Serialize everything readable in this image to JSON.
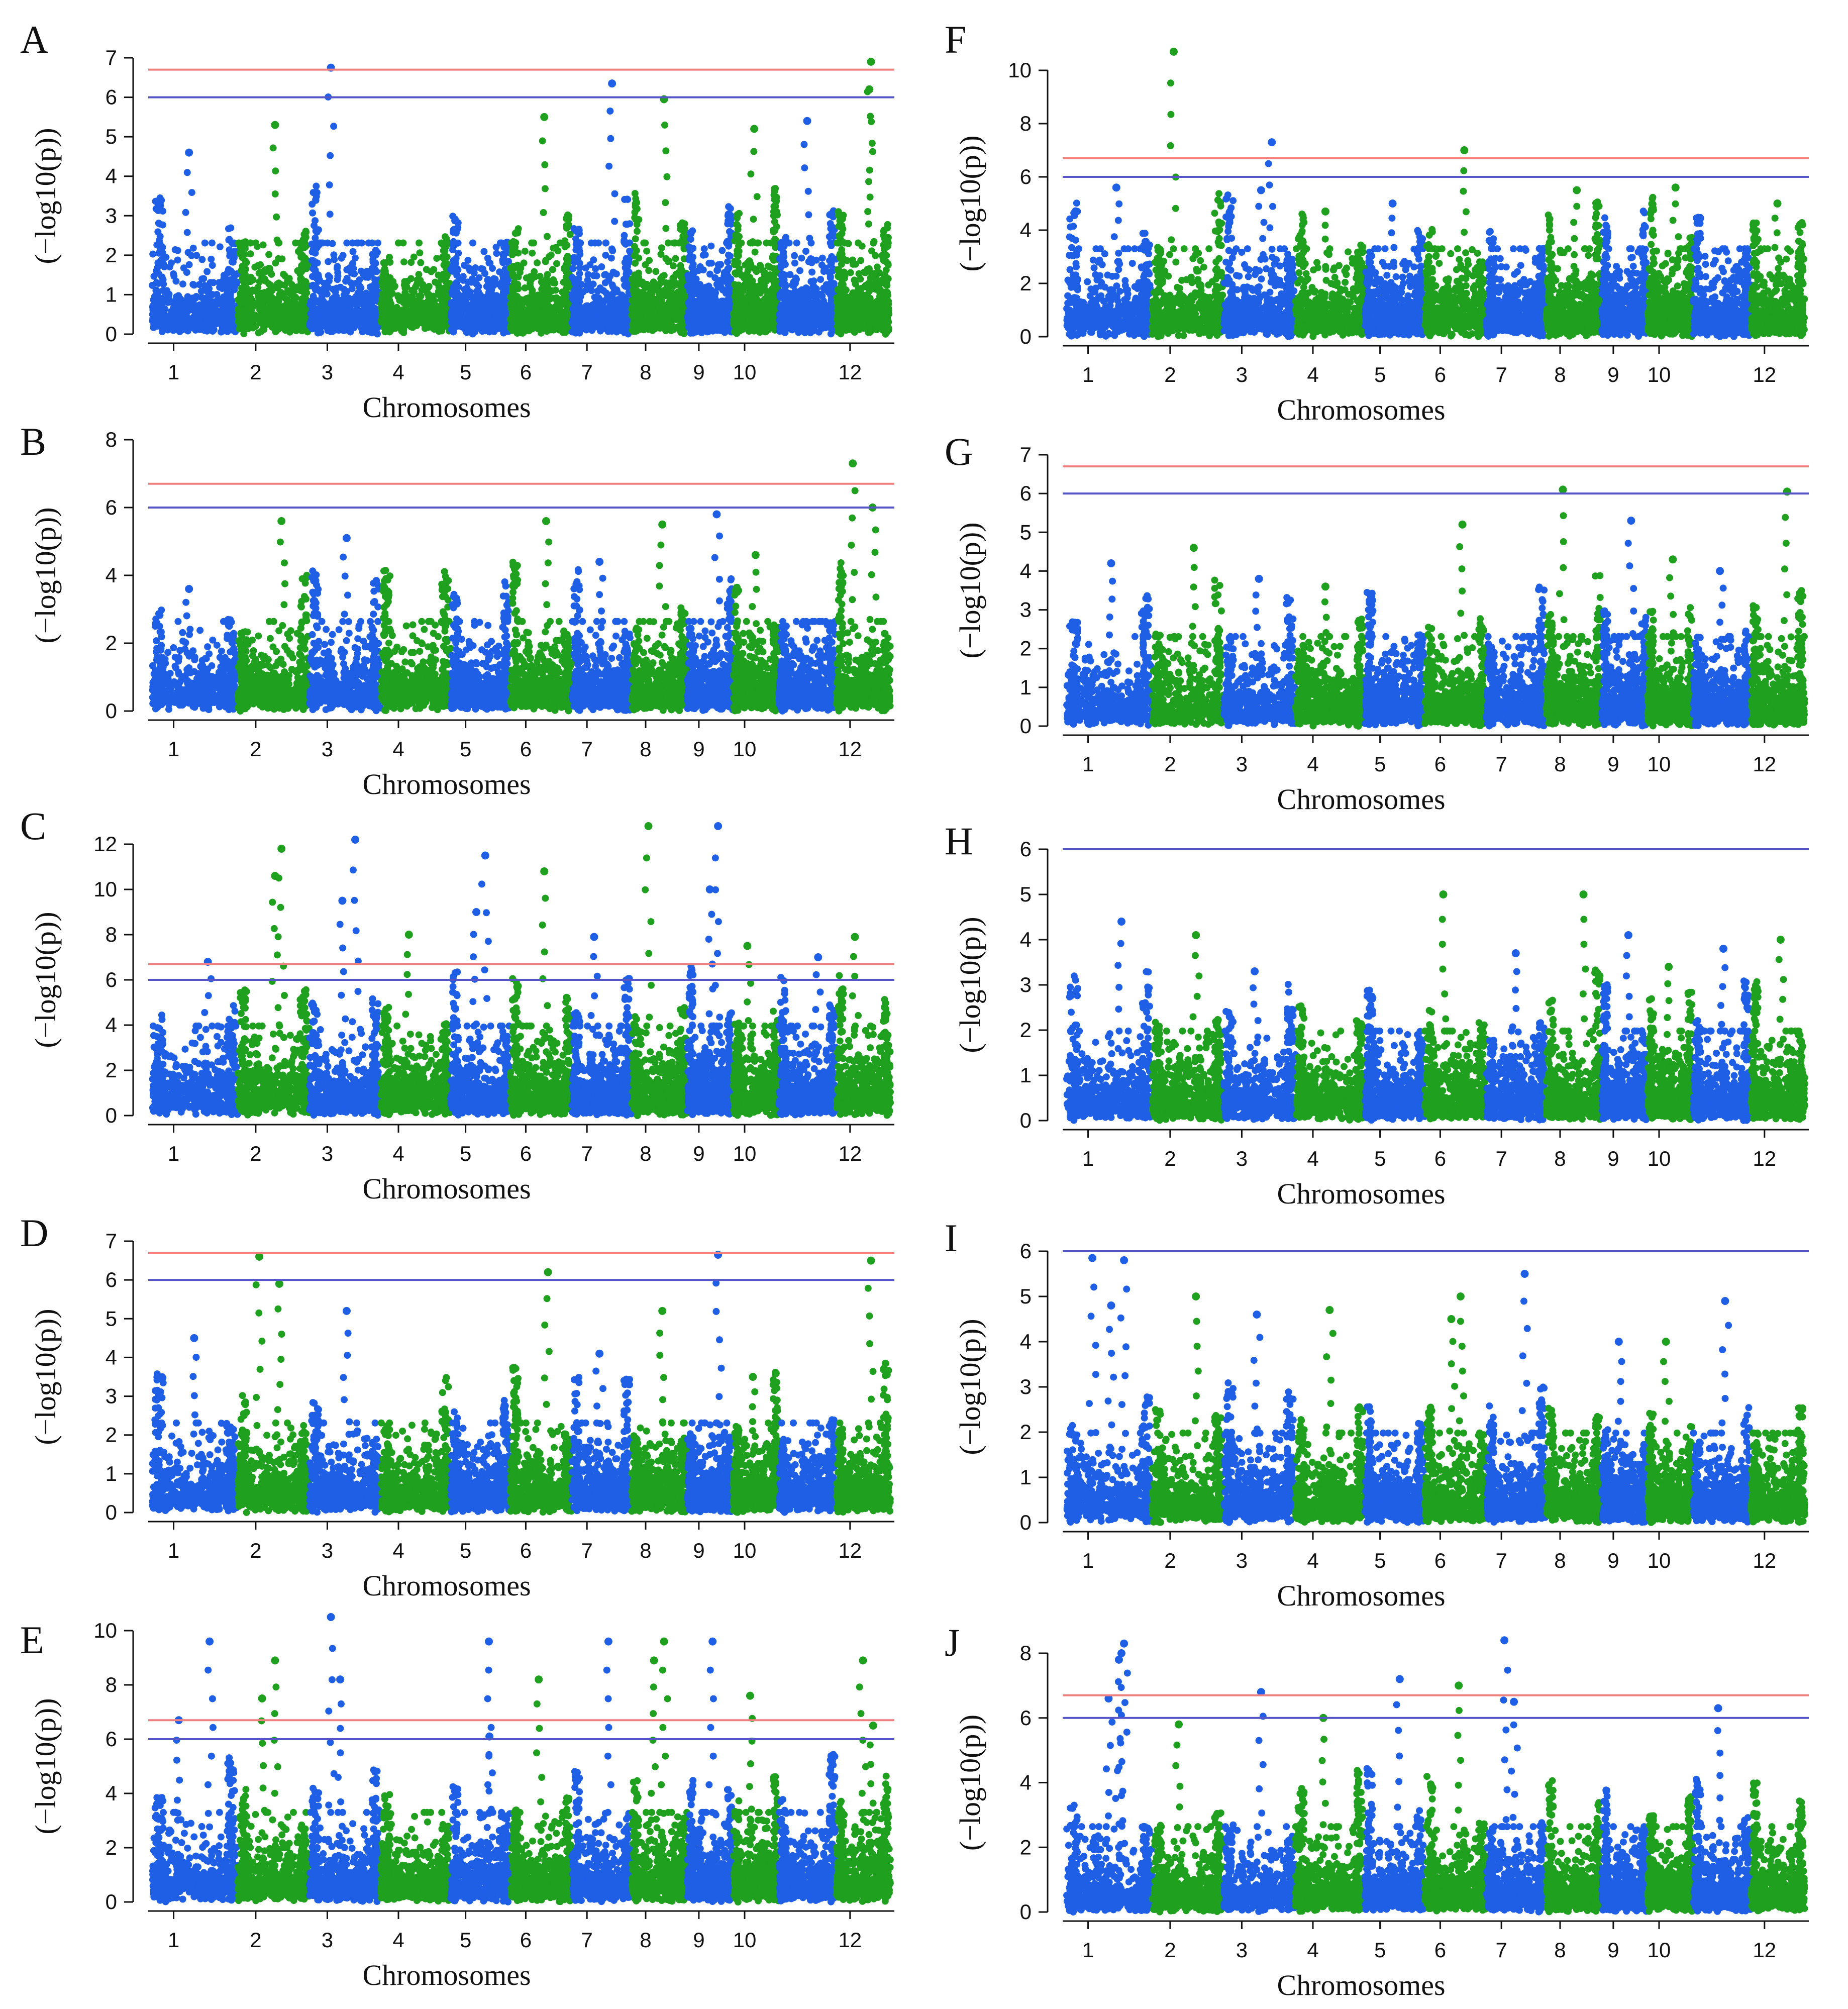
{
  "figure": {
    "colors": {
      "blue": "#1f5fe6",
      "green": "#1fa01f",
      "red_line": "#f08080",
      "blue_line": "#5555c8"
    }
  },
  "chart_data": [
    {
      "type": "scatter",
      "panel": "A",
      "xlabel": "Chromosomes",
      "ylabel": "(−log10(p))",
      "ylim": [
        0,
        7
      ],
      "yticks": [
        0,
        1,
        2,
        3,
        4,
        5,
        6,
        7
      ],
      "threshold_red": 6.7,
      "threshold_blue": 6.0,
      "chrom_labels": [
        "1",
        "2",
        "3",
        "4",
        "5",
        "6",
        "7",
        "8",
        "9",
        "10",
        "12"
      ],
      "peaks": [
        {
          "chrom": 3,
          "value": 6.75
        },
        {
          "chrom": 7,
          "value": 6.35
        },
        {
          "chrom": 12,
          "value": 6.9
        },
        {
          "chrom": 12,
          "value": 6.2
        },
        {
          "chrom": 8,
          "value": 5.95
        },
        {
          "chrom": 6,
          "value": 5.5
        },
        {
          "chrom": 2,
          "value": 5.3
        },
        {
          "chrom": 11,
          "value": 5.4
        },
        {
          "chrom": 10,
          "value": 5.2
        },
        {
          "chrom": 1,
          "value": 4.6
        }
      ]
    },
    {
      "type": "scatter",
      "panel": "B",
      "xlabel": "Chromosomes",
      "ylabel": "(−log10(p))",
      "ylim": [
        0,
        8
      ],
      "yticks": [
        0,
        2,
        4,
        6,
        8
      ],
      "threshold_red": 6.7,
      "threshold_blue": 6.0,
      "chrom_labels": [
        "1",
        "2",
        "3",
        "4",
        "5",
        "6",
        "7",
        "8",
        "9",
        "10",
        "12"
      ],
      "peaks": [
        {
          "chrom": 12,
          "value": 7.3
        },
        {
          "chrom": 12,
          "value": 6.0
        },
        {
          "chrom": 9,
          "value": 5.8
        },
        {
          "chrom": 2,
          "value": 5.6
        },
        {
          "chrom": 6,
          "value": 5.6
        },
        {
          "chrom": 8,
          "value": 5.5
        },
        {
          "chrom": 3,
          "value": 5.1
        },
        {
          "chrom": 10,
          "value": 4.6
        },
        {
          "chrom": 7,
          "value": 4.4
        },
        {
          "chrom": 1,
          "value": 3.6
        }
      ]
    },
    {
      "type": "scatter",
      "panel": "C",
      "xlabel": "Chromosomes",
      "ylabel": "(−log10(p))",
      "ylim": [
        0,
        12
      ],
      "yticks": [
        0,
        2,
        4,
        6,
        8,
        10,
        12
      ],
      "threshold_red": 6.7,
      "threshold_blue": 6.0,
      "chrom_labels": [
        "1",
        "2",
        "3",
        "4",
        "5",
        "6",
        "7",
        "8",
        "9",
        "10",
        "12"
      ],
      "peaks": [
        {
          "chrom": 8,
          "value": 12.8
        },
        {
          "chrom": 9,
          "value": 12.8
        },
        {
          "chrom": 3,
          "value": 12.2
        },
        {
          "chrom": 2,
          "value": 11.8
        },
        {
          "chrom": 5,
          "value": 11.5
        },
        {
          "chrom": 6,
          "value": 10.8
        },
        {
          "chrom": 2,
          "value": 10.6
        },
        {
          "chrom": 9,
          "value": 10.0
        },
        {
          "chrom": 3,
          "value": 9.5
        },
        {
          "chrom": 5,
          "value": 9.0
        },
        {
          "chrom": 4,
          "value": 8.0
        },
        {
          "chrom": 7,
          "value": 7.9
        },
        {
          "chrom": 12,
          "value": 7.9
        },
        {
          "chrom": 10,
          "value": 7.5
        },
        {
          "chrom": 11,
          "value": 7.0
        },
        {
          "chrom": 1,
          "value": 6.8
        }
      ]
    },
    {
      "type": "scatter",
      "panel": "D",
      "xlabel": "Chromosomes",
      "ylabel": "(−log10(p))",
      "ylim": [
        0,
        7
      ],
      "yticks": [
        0,
        1,
        2,
        3,
        4,
        5,
        6,
        7
      ],
      "threshold_red": 6.7,
      "threshold_blue": 6.0,
      "chrom_labels": [
        "1",
        "2",
        "3",
        "4",
        "5",
        "6",
        "7",
        "8",
        "9",
        "10",
        "12"
      ],
      "peaks": [
        {
          "chrom": 2,
          "value": 6.6
        },
        {
          "chrom": 9,
          "value": 6.65
        },
        {
          "chrom": 12,
          "value": 6.5
        },
        {
          "chrom": 6,
          "value": 6.2
        },
        {
          "chrom": 2,
          "value": 5.9
        },
        {
          "chrom": 8,
          "value": 5.2
        },
        {
          "chrom": 3,
          "value": 5.2
        },
        {
          "chrom": 1,
          "value": 4.5
        },
        {
          "chrom": 7,
          "value": 4.1
        },
        {
          "chrom": 10,
          "value": 3.5
        }
      ]
    },
    {
      "type": "scatter",
      "panel": "E",
      "xlabel": "Chromosomes",
      "ylabel": "(−log10(p))",
      "ylim": [
        0,
        10
      ],
      "yticks": [
        0,
        2,
        4,
        6,
        8,
        10
      ],
      "threshold_red": 6.7,
      "threshold_blue": 6.0,
      "chrom_labels": [
        "1",
        "2",
        "3",
        "4",
        "5",
        "6",
        "7",
        "8",
        "9",
        "10",
        "12"
      ],
      "peaks": [
        {
          "chrom": 3,
          "value": 10.5
        },
        {
          "chrom": 1,
          "value": 9.6
        },
        {
          "chrom": 5,
          "value": 9.6
        },
        {
          "chrom": 7,
          "value": 9.6
        },
        {
          "chrom": 8,
          "value": 9.6
        },
        {
          "chrom": 9,
          "value": 9.6
        },
        {
          "chrom": 2,
          "value": 8.9
        },
        {
          "chrom": 12,
          "value": 8.9
        },
        {
          "chrom": 6,
          "value": 8.2
        },
        {
          "chrom": 3,
          "value": 8.2
        },
        {
          "chrom": 8,
          "value": 8.9
        },
        {
          "chrom": 10,
          "value": 7.6
        },
        {
          "chrom": 2,
          "value": 7.5
        },
        {
          "chrom": 1,
          "value": 6.7
        },
        {
          "chrom": 12,
          "value": 6.5
        },
        {
          "chrom": 5,
          "value": 6.1
        }
      ]
    },
    {
      "type": "scatter",
      "panel": "F",
      "xlabel": "Chromosomes",
      "ylabel": "(−log10(p))",
      "ylim": [
        0,
        10
      ],
      "yticks": [
        0,
        2,
        4,
        6,
        8,
        10
      ],
      "threshold_red": 6.7,
      "threshold_blue": 6.0,
      "chrom_labels": [
        "1",
        "2",
        "3",
        "4",
        "5",
        "6",
        "7",
        "8",
        "9",
        "10",
        "12"
      ],
      "peaks": [
        {
          "chrom": 2,
          "value": 10.7
        },
        {
          "chrom": 3,
          "value": 7.3
        },
        {
          "chrom": 6,
          "value": 7.0
        },
        {
          "chrom": 10,
          "value": 5.6
        },
        {
          "chrom": 1,
          "value": 5.6
        },
        {
          "chrom": 8,
          "value": 5.5
        },
        {
          "chrom": 3,
          "value": 5.5
        },
        {
          "chrom": 12,
          "value": 5.0
        },
        {
          "chrom": 5,
          "value": 5.0
        },
        {
          "chrom": 4,
          "value": 4.7
        }
      ]
    },
    {
      "type": "scatter",
      "panel": "G",
      "xlabel": "Chromosomes",
      "ylabel": "(−log10(p))",
      "ylim": [
        0,
        7
      ],
      "yticks": [
        0,
        1,
        2,
        3,
        4,
        5,
        6,
        7
      ],
      "threshold_red": 6.7,
      "threshold_blue": 6.0,
      "chrom_labels": [
        "1",
        "2",
        "3",
        "4",
        "5",
        "6",
        "7",
        "8",
        "9",
        "10",
        "12"
      ],
      "peaks": [
        {
          "chrom": 8,
          "value": 6.1
        },
        {
          "chrom": 12,
          "value": 6.05
        },
        {
          "chrom": 9,
          "value": 5.3
        },
        {
          "chrom": 6,
          "value": 5.2
        },
        {
          "chrom": 2,
          "value": 4.6
        },
        {
          "chrom": 10,
          "value": 4.3
        },
        {
          "chrom": 1,
          "value": 4.2
        },
        {
          "chrom": 3,
          "value": 3.8
        },
        {
          "chrom": 11,
          "value": 4.0
        },
        {
          "chrom": 4,
          "value": 3.6
        }
      ]
    },
    {
      "type": "scatter",
      "panel": "H",
      "xlabel": "Chromosomes",
      "ylabel": "(−log10(p))",
      "ylim": [
        0,
        6
      ],
      "yticks": [
        0,
        1,
        2,
        3,
        4,
        5,
        6
      ],
      "threshold_blue": 6.0,
      "chrom_labels": [
        "1",
        "2",
        "3",
        "4",
        "5",
        "6",
        "7",
        "8",
        "9",
        "10",
        "12"
      ],
      "peaks": [
        {
          "chrom": 6,
          "value": 5.0
        },
        {
          "chrom": 8,
          "value": 5.0
        },
        {
          "chrom": 1,
          "value": 4.4
        },
        {
          "chrom": 2,
          "value": 4.1
        },
        {
          "chrom": 9,
          "value": 4.1
        },
        {
          "chrom": 12,
          "value": 4.0
        },
        {
          "chrom": 11,
          "value": 3.8
        },
        {
          "chrom": 7,
          "value": 3.7
        },
        {
          "chrom": 10,
          "value": 3.4
        },
        {
          "chrom": 3,
          "value": 3.3
        }
      ]
    },
    {
      "type": "scatter",
      "panel": "I",
      "xlabel": "Chromosomes",
      "ylabel": "(−log10(p))",
      "ylim": [
        0,
        6
      ],
      "yticks": [
        0,
        1,
        2,
        3,
        4,
        5,
        6
      ],
      "threshold_blue": 6.0,
      "chrom_labels": [
        "1",
        "2",
        "3",
        "4",
        "5",
        "6",
        "7",
        "8",
        "9",
        "10",
        "12"
      ],
      "peaks": [
        {
          "chrom": 1,
          "value": 5.85
        },
        {
          "chrom": 1,
          "value": 5.8
        },
        {
          "chrom": 7,
          "value": 5.5
        },
        {
          "chrom": 2,
          "value": 5.0
        },
        {
          "chrom": 6,
          "value": 5.0
        },
        {
          "chrom": 11,
          "value": 4.9
        },
        {
          "chrom": 1,
          "value": 4.8
        },
        {
          "chrom": 4,
          "value": 4.7
        },
        {
          "chrom": 3,
          "value": 4.6
        },
        {
          "chrom": 6,
          "value": 4.5
        },
        {
          "chrom": 10,
          "value": 4.0
        },
        {
          "chrom": 9,
          "value": 4.0
        }
      ]
    },
    {
      "type": "scatter",
      "panel": "J",
      "xlabel": "Chromosomes",
      "ylabel": "(−log10(p))",
      "ylim": [
        0,
        8
      ],
      "yticks": [
        0,
        2,
        4,
        6,
        8
      ],
      "threshold_red": 6.7,
      "threshold_blue": 6.0,
      "chrom_labels": [
        "1",
        "2",
        "3",
        "4",
        "5",
        "6",
        "7",
        "8",
        "9",
        "10",
        "12"
      ],
      "peaks": [
        {
          "chrom": 7,
          "value": 8.4
        },
        {
          "chrom": 1,
          "value": 8.3
        },
        {
          "chrom": 1,
          "value": 8.0
        },
        {
          "chrom": 1,
          "value": 7.8
        },
        {
          "chrom": 5,
          "value": 7.2
        },
        {
          "chrom": 6,
          "value": 7.0
        },
        {
          "chrom": 3,
          "value": 6.8
        },
        {
          "chrom": 1,
          "value": 6.6
        },
        {
          "chrom": 7,
          "value": 6.5
        },
        {
          "chrom": 11,
          "value": 6.3
        },
        {
          "chrom": 4,
          "value": 6.0
        },
        {
          "chrom": 2,
          "value": 5.8
        }
      ]
    }
  ]
}
